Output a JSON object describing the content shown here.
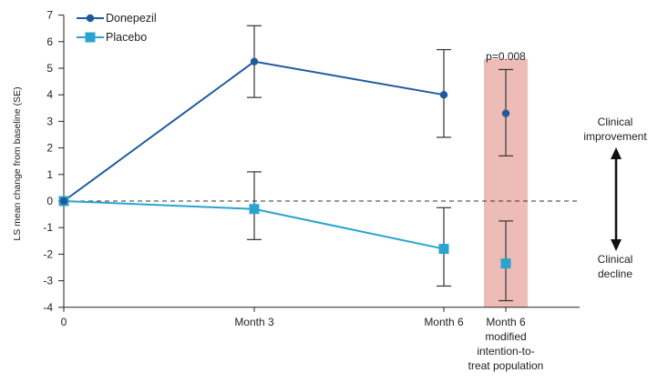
{
  "chart_data": {
    "type": "line",
    "ylabel": "LS mean change from baseline (SE)",
    "ylim": [
      -4,
      7
    ],
    "yticks": [
      "-4",
      "-3",
      "-2",
      "-1",
      "0",
      "1",
      "2",
      "3",
      "4",
      "5",
      "6",
      "7"
    ],
    "categories": [
      "0",
      "Month 3",
      "Month 6"
    ],
    "extra_category": [
      "Month 6",
      "modified",
      "intention-to-",
      "treat population"
    ],
    "grid": false,
    "legend_position": "top-left",
    "reference_line": 0,
    "series": [
      {
        "name": "Donepezil",
        "color": "#1f5a9e",
        "marker": "circle",
        "values": [
          0,
          5.25,
          4.0
        ],
        "error_low": [
          null,
          3.9,
          2.4
        ],
        "error_high": [
          null,
          6.6,
          5.7
        ],
        "mitt": {
          "value": 3.3,
          "error_low": 1.7,
          "error_high": 4.95
        }
      },
      {
        "name": "Placebo",
        "color": "#2aa3cf",
        "marker": "square",
        "values": [
          0,
          -0.3,
          -1.8
        ],
        "error_low": [
          null,
          -1.45,
          -3.2
        ],
        "error_high": [
          null,
          1.1,
          -0.25
        ],
        "mitt": {
          "value": -2.35,
          "error_low": -3.75,
          "error_high": -0.75
        }
      }
    ],
    "annotations": {
      "p_value": "p=0.008",
      "highlight_color": "#eebcb6",
      "improvement": [
        "Clinical",
        "improvement"
      ],
      "decline": [
        "Clinical",
        "decline"
      ]
    }
  }
}
